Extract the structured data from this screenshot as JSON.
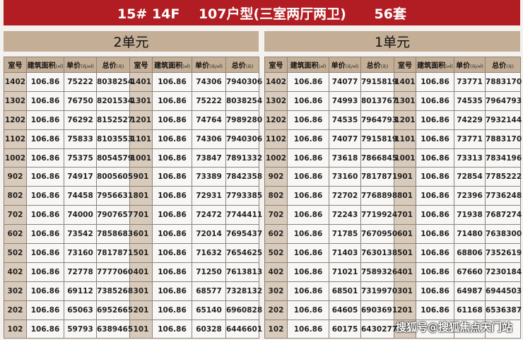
{
  "title": "15# 14F    107户型(三室两厅两卫)      56套",
  "headers": {
    "room": "室号",
    "area": "建筑面积",
    "area_unit": "(㎡)",
    "price": "单价",
    "price_unit": "(元/㎡)",
    "total": "总价",
    "total_unit": "(元)"
  },
  "units": [
    {
      "name": "2单元",
      "rows": [
        [
          "1402",
          "106.86",
          "75222",
          "8038254",
          "1401",
          "106.86",
          "74306",
          "7940306"
        ],
        [
          "1302",
          "106.86",
          "76750",
          "8201534",
          "1301",
          "106.86",
          "75222",
          "8038254"
        ],
        [
          "1202",
          "106.86",
          "76292",
          "8152527",
          "1201",
          "106.86",
          "74764",
          "7989280"
        ],
        [
          "1102",
          "106.86",
          "75833",
          "8103553",
          "1101",
          "106.86",
          "74306",
          "7940306"
        ],
        [
          "1002",
          "106.86",
          "75375",
          "8054579",
          "1001",
          "106.86",
          "73847",
          "7891332"
        ],
        [
          "902",
          "106.86",
          "74917",
          "8005605",
          "901",
          "106.86",
          "73389",
          "7842358"
        ],
        [
          "802",
          "106.86",
          "74458",
          "7956631",
          "801",
          "106.86",
          "72931",
          "7793385"
        ],
        [
          "702",
          "106.86",
          "74000",
          "7907657",
          "701",
          "106.86",
          "72472",
          "7744411"
        ],
        [
          "602",
          "106.86",
          "73542",
          "7858683",
          "601",
          "106.86",
          "72014",
          "7695437"
        ],
        [
          "502",
          "106.86",
          "73160",
          "7817871",
          "501",
          "106.86",
          "71632",
          "7654625"
        ],
        [
          "402",
          "106.86",
          "72778",
          "7777060",
          "401",
          "106.86",
          "71250",
          "7613813"
        ],
        [
          "302",
          "106.86",
          "69112",
          "7385268",
          "301",
          "106.86",
          "68577",
          "7328132"
        ],
        [
          "202",
          "106.86",
          "65063",
          "6952665",
          "201",
          "106.86",
          "65140",
          "6960828"
        ],
        [
          "102",
          "106.86",
          "59793",
          "6389465",
          "101",
          "106.86",
          "60328",
          "6446601"
        ]
      ]
    },
    {
      "name": "1单元",
      "rows": [
        [
          "1402",
          "106.86",
          "74077",
          "7915819",
          "1401",
          "106.86",
          "73771",
          "7883170"
        ],
        [
          "1302",
          "106.86",
          "74993",
          "8013767",
          "1301",
          "106.86",
          "74535",
          "7964793"
        ],
        [
          "1202",
          "106.86",
          "74535",
          "7964793",
          "1201",
          "106.86",
          "74229",
          "7932144"
        ],
        [
          "1102",
          "106.86",
          "74077",
          "7915819",
          "1101",
          "106.86",
          "73771",
          "7883170"
        ],
        [
          "1002",
          "106.86",
          "73618",
          "7866845",
          "1001",
          "106.86",
          "73313",
          "7834196"
        ],
        [
          "902",
          "106.86",
          "73160",
          "7817871",
          "901",
          "106.86",
          "72854",
          "7785222"
        ],
        [
          "802",
          "106.86",
          "72702",
          "7768898",
          "801",
          "106.86",
          "72396",
          "7736248"
        ],
        [
          "702",
          "106.86",
          "72243",
          "7719924",
          "701",
          "106.86",
          "71938",
          "7687274"
        ],
        [
          "602",
          "106.86",
          "71785",
          "7670950",
          "601",
          "106.86",
          "71480",
          "7638300"
        ],
        [
          "502",
          "106.86",
          "71403",
          "7630138",
          "501",
          "106.86",
          "68806",
          "7352619"
        ],
        [
          "402",
          "106.86",
          "71021",
          "7589326",
          "401",
          "106.86",
          "67660",
          "7230184"
        ],
        [
          "302",
          "106.86",
          "68501",
          "7319970",
          "301",
          "106.86",
          "64987",
          "6944503"
        ],
        [
          "202",
          "106.86",
          "64605",
          "6903691",
          "201",
          "106.86",
          "61168",
          "6536387"
        ],
        [
          "102",
          "106.86",
          "60175",
          "6430277",
          "",
          "",
          "",
          ""
        ]
      ]
    }
  ],
  "watermark": "搜狐号@搜狐焦点天门站"
}
